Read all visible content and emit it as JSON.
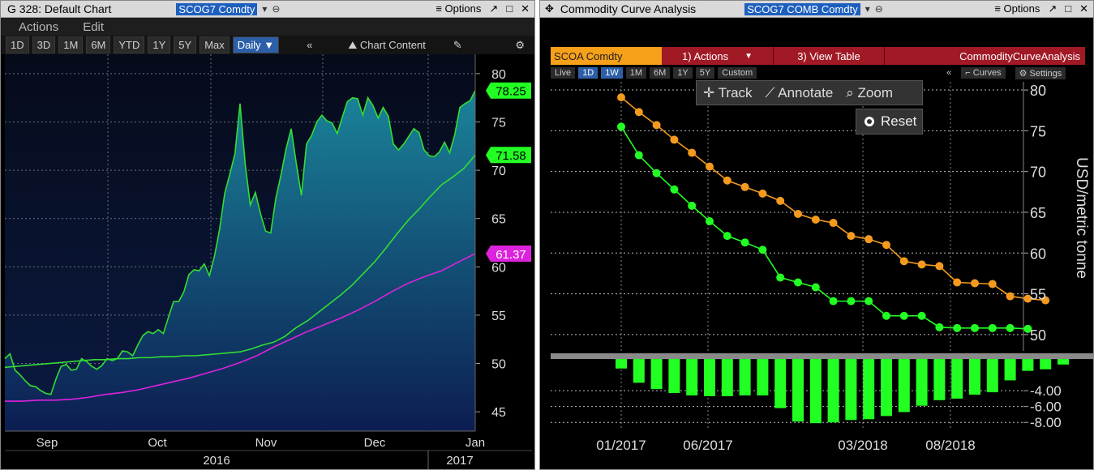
{
  "left": {
    "title": "G 328: Default Chart",
    "ticker": "SCOG7 Comdty",
    "options_label": "Options",
    "menu": [
      "Actions",
      "Edit"
    ],
    "periods": [
      "1D",
      "3D",
      "1M",
      "6M",
      "YTD",
      "1Y",
      "5Y",
      "Max"
    ],
    "frequency": "Daily ▼",
    "chart_content_label": "Chart Content"
  },
  "right": {
    "title": "Commodity Curve Analysis",
    "ticker": "SCOG7 COMB Comdty",
    "options_label": "Options",
    "security_label": "SCOA Comdty",
    "actions_label": "1) Actions",
    "view_table_label": "3) View Table",
    "analysis_label": "CommodityCurveAnalysis",
    "periods": [
      "Live",
      "1D",
      "1W",
      "1M",
      "6M",
      "1Y",
      "5Y",
      "Custom"
    ],
    "curves_label": "Curves",
    "settings_label": "Settings",
    "track_label": "Track",
    "annotate_label": "Annotate",
    "zoom_label": "Zoom",
    "reset_label": "Reset"
  },
  "colors": {
    "green": "#33dd33",
    "magenta": "#dd22dd",
    "orange": "#f39a1f",
    "bright_green": "#22ff22"
  },
  "chart_data": [
    {
      "type": "area",
      "ylim": [
        43,
        82
      ],
      "yticks": [
        45,
        50,
        55,
        60,
        65,
        70,
        75,
        80
      ],
      "x_month_labels": [
        "Sep",
        "Oct",
        "Nov",
        "Dec",
        "Jan"
      ],
      "x_year_labels": [
        "2016",
        "2017"
      ],
      "last_value_labels": [
        "78.25",
        "71.58",
        "61.37"
      ],
      "series": [
        {
          "values": [
            50.5,
            51,
            49.3,
            48.8,
            48.2,
            47.7,
            47.6,
            47.2,
            46.9,
            46.8,
            48.4,
            49.7,
            49.9,
            49.3,
            49.4,
            50.5,
            50.2,
            49.7,
            49.4,
            49.8,
            50.5,
            50.3,
            50.5,
            51.3,
            51.2,
            50.8,
            51.9,
            52.9,
            53.3,
            53.1,
            53.5,
            53.1,
            54.8,
            56.4,
            56.4,
            57.4,
            59.2,
            59.7,
            59.6,
            60.3,
            59.1,
            61.1,
            63.9,
            67.6,
            69.6,
            71.7,
            76.9,
            70.7,
            66.4,
            67.7,
            65.5,
            63.7,
            63.5,
            67.1,
            69.5,
            72.2,
            74.3,
            70.7,
            67.4,
            72.7,
            73.6,
            75,
            75.7,
            75.1,
            74.9,
            73.8,
            75.5,
            77.1,
            77.5,
            77.4,
            75.7,
            77.5,
            76.7,
            75.4,
            76.5,
            75.6,
            72.7,
            72.1,
            72.7,
            73.5,
            74.3,
            73.9,
            72.1,
            71.5,
            71.4,
            71.9,
            72.9,
            71.8,
            73.7,
            76.5,
            76.9,
            77.2,
            78.25
          ]
        },
        {
          "values": [
            49.6,
            49.7,
            49.8,
            49.9,
            50,
            50.1,
            50.2,
            50.3,
            50.4,
            50.4,
            50.5,
            50.5,
            50.6,
            50.6,
            50.7,
            50.7,
            50.8,
            50.8,
            50.9,
            51,
            51.1,
            51.2,
            51.5,
            51.9,
            52.2,
            52.8,
            53.7,
            54.4,
            55.3,
            56.2,
            57.1,
            58.1,
            59.3,
            60.5,
            61.9,
            63.4,
            64.8,
            66,
            67.3,
            68.5,
            69.3,
            70.2,
            71.58
          ]
        },
        {
          "values": [
            46.1,
            46.1,
            46.2,
            46.2,
            46.3,
            46.5,
            46.8,
            47,
            47.3,
            47.7,
            48.1,
            48.5,
            49,
            49.5,
            50.1,
            50.8,
            51.7,
            52.5,
            53.3,
            54,
            54.7,
            55.5,
            56.4,
            57.4,
            58.3,
            59,
            59.6,
            60.5,
            61.37
          ]
        }
      ]
    },
    {
      "type": "line",
      "ylabel": "USD/metric tonne",
      "ylim": [
        48,
        81
      ],
      "yticks": [
        50,
        55,
        60,
        65,
        70,
        75,
        80
      ],
      "x_tick_labels": [
        "01/2017",
        "06/2017",
        "03/2018",
        "08/2018"
      ],
      "series": [
        {
          "values": [
            79.1,
            77.3,
            75.7,
            73.9,
            72.3,
            70.6,
            68.9,
            68.1,
            67.3,
            66.4,
            64.8,
            64.1,
            63.7,
            62.1,
            61.7,
            61,
            59,
            58.6,
            58.4,
            56.4,
            56.3,
            56.2,
            54.7,
            54.4,
            54.2
          ]
        },
        {
          "values": [
            75.5,
            72,
            69.8,
            67.8,
            65.8,
            63.9,
            62.1,
            61.3,
            60.4,
            57,
            56.4,
            55.8,
            54.1,
            54.1,
            54.1,
            52.3,
            52.3,
            52.3,
            50.9,
            50.8,
            50.8,
            50.8,
            50.8,
            50.7
          ]
        }
      ],
      "spread": {
        "ylim": [
          -9,
          0
        ],
        "yticks": [
          "-4.00",
          "-6.00",
          "-8.00"
        ],
        "values": [
          -1.2,
          -3,
          -3.8,
          -4.3,
          -4.6,
          -4.7,
          -4.7,
          -4.6,
          -4.6,
          -6.2,
          -7.9,
          -8.1,
          -8,
          -7.7,
          -7.6,
          -7.2,
          -6.7,
          -5.9,
          -5.2,
          -5,
          -4.5,
          -4.2,
          -2.7,
          -1.5,
          -1.3,
          -0.7
        ]
      }
    }
  ]
}
